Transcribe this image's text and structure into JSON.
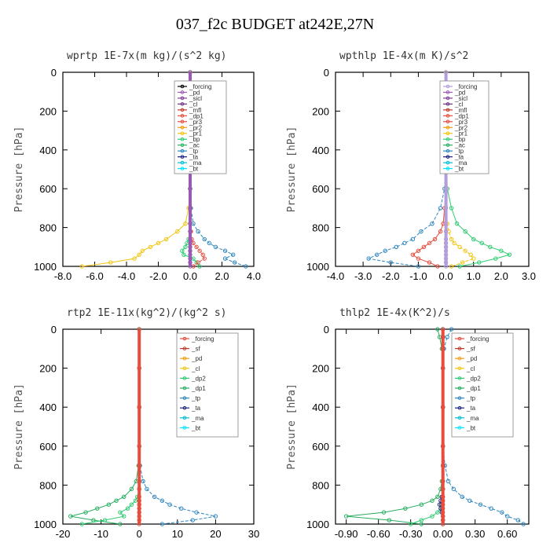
{
  "title": "037_f2c  BUDGET at242E,27N",
  "chart_data": [
    {
      "type": "line",
      "title": "wprtp  1E-7x(m kg)/(s^2 kg)",
      "ylabel": "Pressure [hPa]",
      "xlim": [
        -8,
        4
      ],
      "ylim": [
        1000,
        0
      ],
      "xticks": [
        "-8.0",
        "-6.0",
        "-4.0",
        "-2.0",
        "0.0",
        "2.0",
        "4.0"
      ],
      "xtick_values": [
        -8,
        -6,
        -4,
        -2,
        0,
        2,
        4
      ],
      "yticks": [
        "0",
        "200",
        "400",
        "600",
        "800",
        "1000"
      ],
      "ytick_values": [
        0,
        200,
        400,
        600,
        800,
        1000
      ],
      "legend": [
        "_forcing",
        "_pd",
        "_sicl",
        "_cl",
        "_mfl",
        "_dp1",
        "_pr3",
        "_pr2",
        "_pr1",
        "_bp",
        "_ac",
        "_tp",
        "_ta",
        "_ma",
        "_bt"
      ],
      "legend_colors": [
        "#000000",
        "#9b59b6",
        "#7d3c98",
        "#6c3483",
        "#c0392b",
        "#e74c3c",
        "#e74c3c",
        "#f39c12",
        "#f1c40f",
        "#2ecc71",
        "#27ae60",
        "#2e86c1",
        "#1a237e",
        "#00bcd4",
        "#00e5ff"
      ],
      "pressure": [
        0,
        200,
        400,
        600,
        700,
        780,
        820,
        860,
        880,
        900,
        920,
        940,
        960,
        980,
        1000
      ],
      "series": [
        {
          "color": "#f1c40f",
          "values": [
            0,
            0,
            0,
            0,
            -0.1,
            -0.3,
            -0.8,
            -1.5,
            -2,
            -2.5,
            -3,
            -3.2,
            -3.5,
            -5,
            -6.8
          ]
        },
        {
          "color": "#2e86c1",
          "values": [
            0,
            0,
            0,
            0,
            0.05,
            0.2,
            0.5,
            0.9,
            1.2,
            1.6,
            2.2,
            2.7,
            2.2,
            2.8,
            3.5
          ]
        },
        {
          "color": "#2ecc71",
          "values": [
            0,
            0,
            0,
            0,
            0,
            0,
            0,
            -0.1,
            -0.2,
            -0.3,
            -0.5,
            -0.4,
            0.2,
            0.4,
            0.6
          ]
        },
        {
          "color": "#e74c3c",
          "values": [
            0,
            0,
            0,
            0,
            0,
            0,
            0.05,
            0.1,
            0.2,
            0.4,
            0.6,
            0.8,
            0.9,
            0.5,
            0.2
          ]
        },
        {
          "color": "#9b59b6",
          "values": [
            0,
            0,
            0,
            0,
            0,
            0,
            0,
            0,
            0,
            0,
            0,
            0,
            0,
            0,
            0
          ]
        }
      ]
    },
    {
      "type": "line",
      "title": "wpthlp  1E-4x(m K)/s^2",
      "ylabel": "Pressure [hPa]",
      "xlim": [
        -4,
        3
      ],
      "ylim": [
        1000,
        0
      ],
      "xticks": [
        "-4.0",
        "-3.0",
        "-2.0",
        "-1.0",
        "0.0",
        "1.0",
        "2.0",
        "3.0"
      ],
      "xtick_values": [
        -4,
        -3,
        -2,
        -1,
        0,
        1,
        2,
        3
      ],
      "yticks": [
        "0",
        "200",
        "400",
        "600",
        "800",
        "1000"
      ],
      "ytick_values": [
        0,
        200,
        400,
        600,
        800,
        1000
      ],
      "legend": [
        "_forcing",
        "_pd",
        "_sicl",
        "_cl",
        "_mfl",
        "_dp1",
        "_pr3",
        "_pr2",
        "_pr1",
        "_bp",
        "_ac",
        "_tp",
        "_ta",
        "_ma",
        "_bt"
      ],
      "legend_colors": [
        "#b39ddb",
        "#9b59b6",
        "#7d3c98",
        "#6c3483",
        "#c0392b",
        "#e74c3c",
        "#e74c3c",
        "#f39c12",
        "#f1c40f",
        "#2ecc71",
        "#27ae60",
        "#2e86c1",
        "#1a237e",
        "#00bcd4",
        "#00e5ff"
      ],
      "pressure": [
        0,
        200,
        400,
        600,
        700,
        780,
        820,
        860,
        880,
        900,
        920,
        940,
        960,
        980,
        1000
      ],
      "series": [
        {
          "color": "#2ecc71",
          "values": [
            0,
            0,
            0,
            0.05,
            0.2,
            0.4,
            0.7,
            1,
            1.3,
            1.6,
            2,
            2.3,
            1.8,
            1.2,
            0.5
          ]
        },
        {
          "color": "#2e86c1",
          "values": [
            0,
            0,
            0,
            -0.05,
            -0.2,
            -0.5,
            -0.9,
            -1.2,
            -1.5,
            -1.8,
            -2.2,
            -2.5,
            -2.8,
            -2,
            -1
          ]
        },
        {
          "color": "#e74c3c",
          "values": [
            0,
            0,
            0,
            0,
            -0.05,
            -0.1,
            -0.2,
            -0.4,
            -0.6,
            -0.8,
            -1,
            -1.2,
            -1,
            -0.6,
            -0.3
          ]
        },
        {
          "color": "#f1c40f",
          "values": [
            0,
            0,
            0,
            0,
            0,
            0.05,
            0.1,
            0.2,
            0.3,
            0.5,
            0.7,
            0.9,
            1,
            0.6,
            0.2
          ]
        },
        {
          "color": "#b39ddb",
          "values": [
            0,
            0,
            0,
            0,
            0,
            0,
            0,
            0,
            0,
            0,
            0,
            0,
            0,
            0,
            0
          ]
        }
      ]
    },
    {
      "type": "line",
      "title": "rtp2  1E-11x(kg^2)/(kg^2 s)",
      "ylabel": "Pressure [hPa]",
      "xlim": [
        -20,
        30
      ],
      "ylim": [
        1000,
        0
      ],
      "xticks": [
        "-20",
        "-10",
        "0",
        "10",
        "20",
        "30"
      ],
      "xtick_values": [
        -20,
        -10,
        0,
        10,
        20,
        30
      ],
      "yticks": [
        "0",
        "200",
        "400",
        "600",
        "800",
        "1000"
      ],
      "ytick_values": [
        0,
        200,
        400,
        600,
        800,
        1000
      ],
      "legend": [
        "_forcing",
        "_sf",
        "_pd",
        "_cl",
        "_dp2",
        "_dp1",
        "_tp",
        "_ta",
        "_ma",
        "_bt"
      ],
      "legend_colors": [
        "#e74c3c",
        "#c0392b",
        "#f39c12",
        "#f1c40f",
        "#2ecc71",
        "#27ae60",
        "#2e86c1",
        "#1a237e",
        "#00bcd4",
        "#00e5ff"
      ],
      "pressure": [
        0,
        200,
        400,
        600,
        700,
        780,
        820,
        860,
        880,
        900,
        920,
        940,
        960,
        980,
        1000
      ],
      "series": [
        {
          "color": "#27ae60",
          "values": [
            0,
            0,
            0,
            0,
            -0.2,
            -0.8,
            -2,
            -4,
            -6,
            -8,
            -11,
            -14,
            -18,
            -12,
            -5
          ]
        },
        {
          "color": "#2e86c1",
          "values": [
            0,
            0,
            0,
            0,
            0.2,
            1,
            2,
            4,
            6,
            8,
            11,
            15,
            20,
            14,
            6
          ]
        },
        {
          "color": "#2ecc71",
          "values": [
            0,
            0,
            0,
            0,
            0,
            0,
            0,
            -0.5,
            -1,
            -2,
            -3,
            -5,
            -4,
            -9,
            -15
          ]
        },
        {
          "color": "#e74c3c",
          "values": [
            0,
            0,
            0,
            0,
            0,
            0,
            0,
            0,
            0,
            0,
            0,
            0,
            0,
            0,
            0
          ]
        }
      ]
    },
    {
      "type": "line",
      "title": "thlp2  1E-4x(K^2)/s",
      "ylabel": "Pressure [hPa]",
      "xlim": [
        -1.0,
        0.8
      ],
      "ylim": [
        1000,
        0
      ],
      "xticks": [
        "-0.90",
        "-0.60",
        "-0.30",
        "0.00",
        "0.30",
        "0.60"
      ],
      "xtick_values": [
        -0.9,
        -0.6,
        -0.3,
        0,
        0.3,
        0.6
      ],
      "yticks": [
        "0",
        "200",
        "400",
        "600",
        "800",
        "1000"
      ],
      "ytick_values": [
        0,
        200,
        400,
        600,
        800,
        1000
      ],
      "legend": [
        "_forcing",
        "_sf",
        "_pd",
        "_cl",
        "_dp2",
        "_dp1",
        "_tp",
        "_ta",
        "_ma",
        "_bt"
      ],
      "legend_colors": [
        "#e74c3c",
        "#c0392b",
        "#f39c12",
        "#f1c40f",
        "#2ecc71",
        "#27ae60",
        "#2e86c1",
        "#1a237e",
        "#00bcd4",
        "#00e5ff"
      ],
      "pressure": [
        0,
        40,
        100,
        200,
        400,
        600,
        700,
        780,
        820,
        860,
        880,
        900,
        920,
        940,
        960,
        980,
        1000
      ],
      "series": [
        {
          "color": "#27ae60",
          "values": [
            -0.05,
            -0.03,
            -0.01,
            0,
            0,
            0,
            0,
            -0.01,
            -0.02,
            -0.05,
            -0.1,
            -0.2,
            -0.35,
            -0.55,
            -0.9,
            -0.5,
            -0.2
          ]
        },
        {
          "color": "#2e86c1",
          "values": [
            0.08,
            0.04,
            0.01,
            0,
            0,
            0,
            0.02,
            0.05,
            0.1,
            0.18,
            0.25,
            0.35,
            0.45,
            0.55,
            0.6,
            0.7,
            0.75
          ]
        },
        {
          "color": "#2ecc71",
          "values": [
            0,
            0,
            0,
            0,
            0,
            0,
            0,
            0,
            0,
            0,
            0,
            -0.01,
            -0.02,
            -0.05,
            -0.1,
            -0.2,
            -0.3
          ]
        },
        {
          "color": "#1a237e",
          "values": [
            0,
            0,
            0,
            0,
            0,
            0,
            0,
            0,
            0,
            -0.01,
            -0.02,
            -0.03,
            -0.02,
            -0.01,
            0,
            0,
            0
          ]
        },
        {
          "color": "#e74c3c",
          "values": [
            0,
            0,
            0,
            0,
            0,
            0,
            0,
            0,
            0,
            0,
            0,
            0,
            0,
            0,
            0,
            0,
            0
          ]
        }
      ]
    }
  ]
}
